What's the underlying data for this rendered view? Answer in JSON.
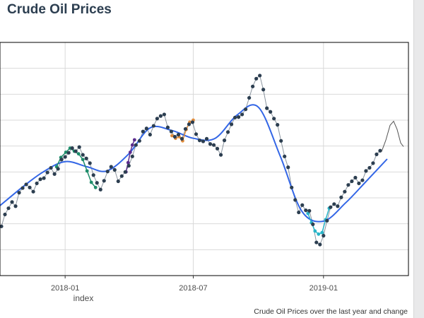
{
  "chart_data": {
    "type": "scatter",
    "title": "Crude Oil Prices",
    "xlabel": "index",
    "ylabel": "",
    "caption": "Crude Oil Prices over the last year and change",
    "x_ticks": [
      "2018-01",
      "2018-07",
      "2019-01"
    ],
    "xlim": [
      "2017-10-01",
      "2019-05-01"
    ],
    "ylim": [
      35,
      80
    ],
    "grid": true,
    "colors": {
      "points": "#2c3e50",
      "trend": "#3366e6",
      "segment_green": "#1e8c6a",
      "segment_purple": "#5b2d8e",
      "segment_orange": "#e08c3c",
      "segment_teal": "#28b4c8",
      "forecast": "#555555"
    },
    "trend": [
      {
        "x": "2017-10-01",
        "y": 48.5
      },
      {
        "x": "2017-11-01",
        "y": 52.0
      },
      {
        "x": "2017-12-01",
        "y": 55.0
      },
      {
        "x": "2018-01-01",
        "y": 57.0
      },
      {
        "x": "2018-02-01",
        "y": 56.0
      },
      {
        "x": "2018-03-01",
        "y": 55.2
      },
      {
        "x": "2018-04-01",
        "y": 58.5
      },
      {
        "x": "2018-05-01",
        "y": 63.5
      },
      {
        "x": "2018-06-01",
        "y": 63.0
      },
      {
        "x": "2018-07-01",
        "y": 61.5
      },
      {
        "x": "2018-08-01",
        "y": 61.5
      },
      {
        "x": "2018-09-01",
        "y": 66.0
      },
      {
        "x": "2018-10-01",
        "y": 67.5
      },
      {
        "x": "2018-11-01",
        "y": 58.0
      },
      {
        "x": "2018-12-01",
        "y": 47.5
      },
      {
        "x": "2019-01-01",
        "y": 45.5
      },
      {
        "x": "2019-02-01",
        "y": 49.0
      },
      {
        "x": "2019-03-01",
        "y": 53.0
      },
      {
        "x": "2019-04-01",
        "y": 57.5
      }
    ],
    "points": [
      {
        "x": "2017-10-03",
        "y": 44.5
      },
      {
        "x": "2017-10-08",
        "y": 46.8
      },
      {
        "x": "2017-10-13",
        "y": 48.0
      },
      {
        "x": "2017-10-18",
        "y": 49.2
      },
      {
        "x": "2017-10-23",
        "y": 48.4
      },
      {
        "x": "2017-10-28",
        "y": 51.0
      },
      {
        "x": "2017-11-02",
        "y": 51.9
      },
      {
        "x": "2017-11-07",
        "y": 52.6
      },
      {
        "x": "2017-11-12",
        "y": 52.0
      },
      {
        "x": "2017-11-17",
        "y": 51.2
      },
      {
        "x": "2017-11-22",
        "y": 52.8
      },
      {
        "x": "2017-11-27",
        "y": 53.6
      },
      {
        "x": "2017-12-02",
        "y": 53.8
      },
      {
        "x": "2017-12-07",
        "y": 54.9
      },
      {
        "x": "2017-12-12",
        "y": 55.8
      },
      {
        "x": "2017-12-17",
        "y": 54.6
      },
      {
        "x": "2017-12-22",
        "y": 55.6
      },
      {
        "x": "2017-12-27",
        "y": 57.4
      },
      {
        "x": "2018-01-01",
        "y": 57.9
      },
      {
        "x": "2018-01-06",
        "y": 58.7
      },
      {
        "x": "2018-01-11",
        "y": 59.6
      },
      {
        "x": "2018-01-16",
        "y": 59.0
      },
      {
        "x": "2018-01-21",
        "y": 59.8
      },
      {
        "x": "2018-01-26",
        "y": 58.3
      },
      {
        "x": "2018-01-31",
        "y": 57.6
      },
      {
        "x": "2018-02-05",
        "y": 56.7
      },
      {
        "x": "2018-02-10",
        "y": 54.4
      },
      {
        "x": "2018-02-15",
        "y": 52.9
      },
      {
        "x": "2018-02-20",
        "y": 51.6
      },
      {
        "x": "2018-02-25",
        "y": 53.3
      },
      {
        "x": "2018-03-02",
        "y": 55.1
      },
      {
        "x": "2018-03-07",
        "y": 56.0
      },
      {
        "x": "2018-03-12",
        "y": 55.4
      },
      {
        "x": "2018-03-17",
        "y": 53.2
      },
      {
        "x": "2018-03-22",
        "y": 54.2
      },
      {
        "x": "2018-03-27",
        "y": 55.0
      },
      {
        "x": "2018-04-01",
        "y": 56.2
      },
      {
        "x": "2018-04-06",
        "y": 58.0
      },
      {
        "x": "2018-04-11",
        "y": 60.2
      },
      {
        "x": "2018-04-16",
        "y": 61.0
      },
      {
        "x": "2018-04-21",
        "y": 62.8
      },
      {
        "x": "2018-04-26",
        "y": 63.4
      },
      {
        "x": "2018-05-01",
        "y": 62.2
      },
      {
        "x": "2018-05-06",
        "y": 63.9
      },
      {
        "x": "2018-05-11",
        "y": 65.3
      },
      {
        "x": "2018-05-16",
        "y": 65.8
      },
      {
        "x": "2018-05-21",
        "y": 66.1
      },
      {
        "x": "2018-05-26",
        "y": 63.6
      },
      {
        "x": "2018-05-31",
        "y": 62.8
      },
      {
        "x": "2018-06-05",
        "y": 61.8
      },
      {
        "x": "2018-06-10",
        "y": 62.2
      },
      {
        "x": "2018-06-15",
        "y": 61.4
      },
      {
        "x": "2018-06-20",
        "y": 63.3
      },
      {
        "x": "2018-06-25",
        "y": 64.2
      },
      {
        "x": "2018-06-30",
        "y": 64.6
      },
      {
        "x": "2018-07-05",
        "y": 62.3
      },
      {
        "x": "2018-07-10",
        "y": 61.1
      },
      {
        "x": "2018-07-15",
        "y": 60.9
      },
      {
        "x": "2018-07-20",
        "y": 61.4
      },
      {
        "x": "2018-07-25",
        "y": 60.4
      },
      {
        "x": "2018-07-30",
        "y": 60.2
      },
      {
        "x": "2018-08-04",
        "y": 59.5
      },
      {
        "x": "2018-08-09",
        "y": 58.3
      },
      {
        "x": "2018-08-14",
        "y": 61.1
      },
      {
        "x": "2018-08-19",
        "y": 62.7
      },
      {
        "x": "2018-08-24",
        "y": 64.2
      },
      {
        "x": "2018-08-29",
        "y": 65.5
      },
      {
        "x": "2018-09-03",
        "y": 65.6
      },
      {
        "x": "2018-09-08",
        "y": 66.1
      },
      {
        "x": "2018-09-13",
        "y": 67.1
      },
      {
        "x": "2018-09-18",
        "y": 69.3
      },
      {
        "x": "2018-09-23",
        "y": 71.5
      },
      {
        "x": "2018-09-28",
        "y": 73.0
      },
      {
        "x": "2018-10-03",
        "y": 73.6
      },
      {
        "x": "2018-10-08",
        "y": 70.9
      },
      {
        "x": "2018-10-13",
        "y": 67.3
      },
      {
        "x": "2018-10-18",
        "y": 66.6
      },
      {
        "x": "2018-10-23",
        "y": 65.3
      },
      {
        "x": "2018-10-28",
        "y": 64.1
      },
      {
        "x": "2018-11-02",
        "y": 61.0
      },
      {
        "x": "2018-11-07",
        "y": 58.0
      },
      {
        "x": "2018-11-12",
        "y": 55.9
      },
      {
        "x": "2018-11-17",
        "y": 52.0
      },
      {
        "x": "2018-11-22",
        "y": 49.6
      },
      {
        "x": "2018-11-27",
        "y": 47.2
      },
      {
        "x": "2018-12-02",
        "y": 48.6
      },
      {
        "x": "2018-12-07",
        "y": 47.6
      },
      {
        "x": "2018-12-12",
        "y": 47.5
      },
      {
        "x": "2018-12-17",
        "y": 44.9
      },
      {
        "x": "2018-12-22",
        "y": 41.4
      },
      {
        "x": "2018-12-27",
        "y": 41.0
      },
      {
        "x": "2019-01-01",
        "y": 42.7
      },
      {
        "x": "2019-01-06",
        "y": 45.6
      },
      {
        "x": "2019-01-11",
        "y": 48.2
      },
      {
        "x": "2019-01-16",
        "y": 48.8
      },
      {
        "x": "2019-01-21",
        "y": 48.4
      },
      {
        "x": "2019-01-26",
        "y": 50.1
      },
      {
        "x": "2019-01-31",
        "y": 51.2
      },
      {
        "x": "2019-02-05",
        "y": 52.5
      },
      {
        "x": "2019-02-10",
        "y": 53.2
      },
      {
        "x": "2019-02-15",
        "y": 53.9
      },
      {
        "x": "2019-02-20",
        "y": 52.8
      },
      {
        "x": "2019-02-25",
        "y": 53.4
      },
      {
        "x": "2019-03-02",
        "y": 55.2
      },
      {
        "x": "2019-03-07",
        "y": 55.8
      },
      {
        "x": "2019-03-12",
        "y": 56.7
      },
      {
        "x": "2019-03-17",
        "y": 58.4
      },
      {
        "x": "2019-03-22",
        "y": 59.1
      }
    ],
    "segments": [
      {
        "name": "segment_green",
        "points": [
          {
            "x": "2017-12-20",
            "y": 56.0
          },
          {
            "x": "2017-12-26",
            "y": 57.8
          },
          {
            "x": "2018-01-02",
            "y": 58.8
          },
          {
            "x": "2018-01-08",
            "y": 59.6
          },
          {
            "x": "2018-01-14",
            "y": 59.0
          },
          {
            "x": "2018-01-20",
            "y": 58.5
          },
          {
            "x": "2018-01-26",
            "y": 57.4
          },
          {
            "x": "2018-02-01",
            "y": 55.2
          },
          {
            "x": "2018-02-07",
            "y": 53.0
          },
          {
            "x": "2018-02-13",
            "y": 52.0
          }
        ]
      },
      {
        "name": "segment_purple",
        "points": [
          {
            "x": "2018-03-28",
            "y": 55.0
          },
          {
            "x": "2018-03-31",
            "y": 56.8
          },
          {
            "x": "2018-04-03",
            "y": 58.8
          },
          {
            "x": "2018-04-06",
            "y": 60.2
          },
          {
            "x": "2018-04-09",
            "y": 61.2
          }
        ]
      },
      {
        "name": "segment_orange",
        "points": [
          {
            "x": "2018-06-01",
            "y": 62.0
          },
          {
            "x": "2018-06-06",
            "y": 61.5
          },
          {
            "x": "2018-06-11",
            "y": 61.8
          },
          {
            "x": "2018-06-16",
            "y": 61.0
          },
          {
            "x": "2018-06-21",
            "y": 63.2
          },
          {
            "x": "2018-06-26",
            "y": 64.6
          },
          {
            "x": "2018-07-01",
            "y": 65.0
          }
        ]
      },
      {
        "name": "segment_teal",
        "points": [
          {
            "x": "2018-12-10",
            "y": 47.0
          },
          {
            "x": "2018-12-15",
            "y": 45.2
          },
          {
            "x": "2018-12-20",
            "y": 43.6
          },
          {
            "x": "2018-12-25",
            "y": 43.0
          },
          {
            "x": "2018-12-30",
            "y": 43.3
          },
          {
            "x": "2019-01-04",
            "y": 45.8
          },
          {
            "x": "2019-01-09",
            "y": 48.0
          }
        ]
      }
    ],
    "forecast": [
      {
        "x": "2019-03-24",
        "y": 58.9
      },
      {
        "x": "2019-03-30",
        "y": 61.1
      },
      {
        "x": "2019-04-05",
        "y": 64.0
      },
      {
        "x": "2019-04-10",
        "y": 64.8
      },
      {
        "x": "2019-04-15",
        "y": 63.2
      },
      {
        "x": "2019-04-20",
        "y": 60.6
      },
      {
        "x": "2019-04-24",
        "y": 59.9
      }
    ]
  }
}
